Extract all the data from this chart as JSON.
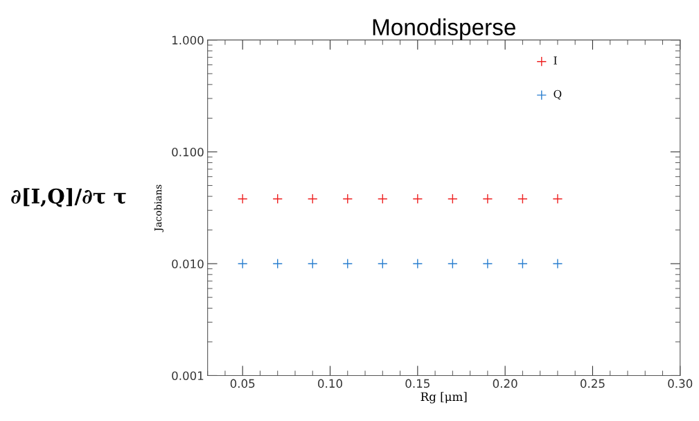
{
  "chart_data": {
    "type": "scatter",
    "title": "Monodisperse",
    "xlabel": "Rg [μm]",
    "ylabel": "Jacobians",
    "annotations": [
      "∂[I,Q]/∂τ τ"
    ],
    "x": [
      0.05,
      0.07,
      0.09,
      0.11,
      0.13,
      0.15,
      0.17,
      0.19,
      0.21,
      0.23
    ],
    "series": [
      {
        "name": "I",
        "color": "#ee2222",
        "values": [
          0.038,
          0.038,
          0.038,
          0.038,
          0.038,
          0.038,
          0.038,
          0.038,
          0.038,
          0.038
        ]
      },
      {
        "name": "Q",
        "color": "#2a7fcf",
        "values": [
          0.01,
          0.01,
          0.01,
          0.01,
          0.01,
          0.01,
          0.01,
          0.01,
          0.01,
          0.01
        ]
      }
    ],
    "log": "y",
    "xlim": [
      0.03,
      0.3
    ],
    "ylim": [
      0.001,
      1.0
    ],
    "xticks": [
      {
        "value": 0.05,
        "label": "0.05"
      },
      {
        "value": 0.1,
        "label": "0.10"
      },
      {
        "value": 0.15,
        "label": "0.15"
      },
      {
        "value": 0.2,
        "label": "0.20"
      },
      {
        "value": 0.25,
        "label": "0.25"
      },
      {
        "value": 0.3,
        "label": "0.30"
      }
    ],
    "yticks": [
      {
        "value": 0.001,
        "label": "0.001"
      },
      {
        "value": 0.01,
        "label": "0.010"
      },
      {
        "value": 0.1,
        "label": "0.100"
      },
      {
        "value": 1.0,
        "label": "1.000"
      }
    ],
    "grid": false,
    "legend": "top right",
    "marker": "cross"
  }
}
